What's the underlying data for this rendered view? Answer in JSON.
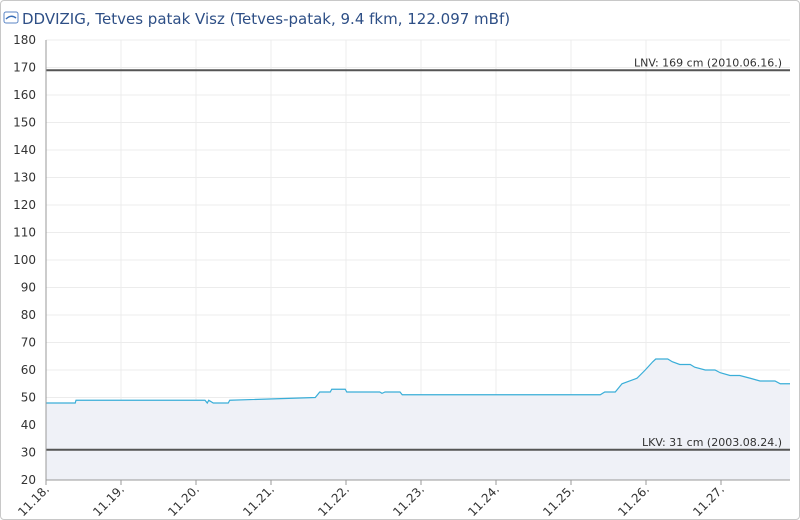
{
  "chart_data": {
    "type": "line",
    "title": "DDVIZIG, Tetves patak Visz (Tetves-patak, 9.4 fkm, 122.097 mBf)",
    "x": [
      18,
      18.39,
      18.4,
      20.12,
      20.15,
      20.17,
      20.23,
      20.43,
      20.45,
      21.59,
      21.65,
      21.79,
      21.81,
      21.99,
      22.01,
      22.45,
      22.48,
      22.52,
      22.72,
      22.75,
      25.39,
      25.45,
      25.59,
      25.68,
      25.88,
      25.99,
      26.09,
      26.13,
      26.29,
      26.35,
      26.45,
      26.59,
      26.65,
      26.79,
      26.92,
      26.99,
      27.12,
      27.25,
      27.39,
      27.52,
      27.72,
      27.79,
      27.92
    ],
    "series": [
      {
        "color": "#3aaed8",
        "fill": "#eff1f7",
        "values": [
          48,
          48,
          49,
          49,
          48,
          49,
          48,
          48,
          49,
          50,
          52,
          52,
          53,
          53,
          52,
          52,
          51.5,
          52,
          52,
          51,
          51,
          52,
          52,
          55,
          57,
          60,
          63,
          64,
          64,
          63,
          62,
          62,
          61,
          60,
          60,
          59,
          58,
          58,
          57,
          56,
          56,
          55,
          55
        ]
      }
    ],
    "xlim": [
      18,
      27.92
    ],
    "xticks": [
      {
        "value": 18,
        "label": "11.18."
      },
      {
        "value": 19,
        "label": "11.19."
      },
      {
        "value": 20,
        "label": "11.20."
      },
      {
        "value": 21,
        "label": "11.21."
      },
      {
        "value": 22,
        "label": "11.22."
      },
      {
        "value": 23,
        "label": "11.23."
      },
      {
        "value": 24,
        "label": "11.24."
      },
      {
        "value": 25,
        "label": "11.25."
      },
      {
        "value": 26,
        "label": "11.26."
      },
      {
        "value": 27,
        "label": "11.27."
      }
    ],
    "ylim": [
      20,
      180
    ],
    "yticks": [
      20,
      30,
      40,
      50,
      60,
      70,
      80,
      90,
      100,
      110,
      120,
      130,
      140,
      150,
      160,
      170,
      180
    ],
    "grid": true,
    "reference_lines": [
      {
        "value": 169,
        "label": "LNV: 169 cm (2010.06.16.)",
        "color": "#555555"
      },
      {
        "value": 31,
        "label": "LKV: 31 cm (2003.08.24.)",
        "color": "#555555"
      }
    ]
  }
}
